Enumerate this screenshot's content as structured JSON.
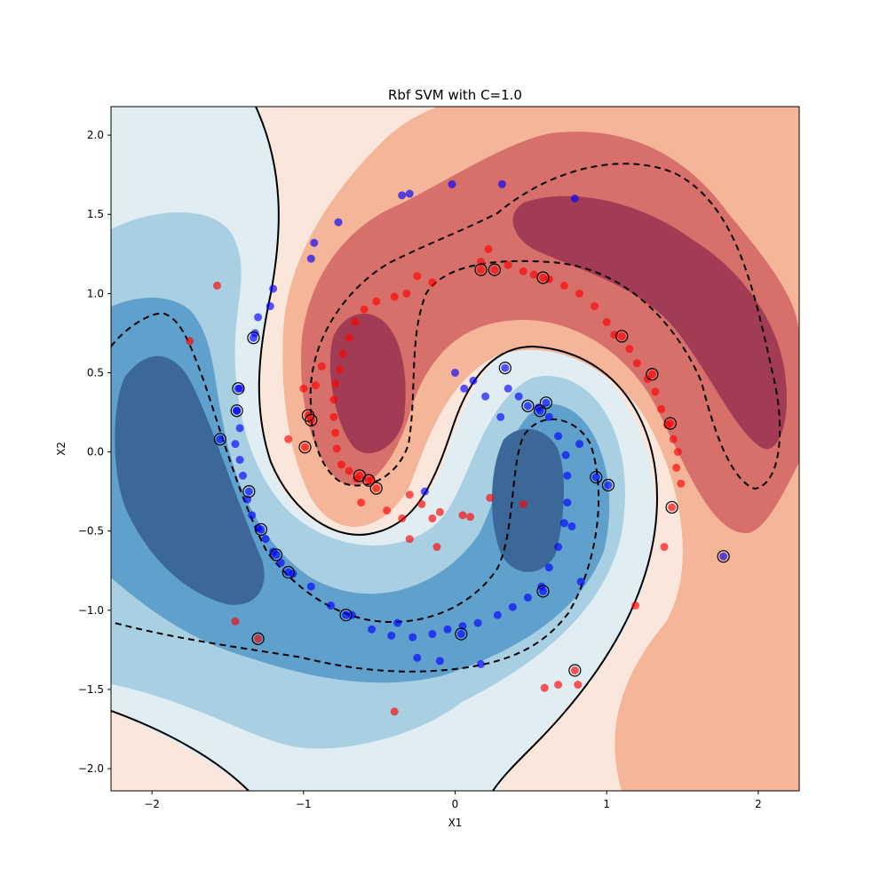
{
  "chart_data": {
    "type": "scatter",
    "title": "Rbf SVM with C=1.0",
    "xlabel": "X1",
    "ylabel": "X2",
    "xlim": [
      -2.27,
      2.27
    ],
    "ylim": [
      -2.14,
      2.18
    ],
    "xticks": [
      -2,
      -1,
      0,
      1,
      2
    ],
    "yticks": [
      -2.0,
      -1.5,
      -1.0,
      -0.5,
      0.0,
      0.5,
      1.0,
      1.5,
      2.0
    ],
    "xtick_labels": [
      "−2",
      "−1",
      "0",
      "1",
      "2"
    ],
    "ytick_labels": [
      "−2.0",
      "−1.5",
      "−1.0",
      "−0.5",
      "0.0",
      "0.5",
      "1.0",
      "1.5",
      "2.0"
    ],
    "background": "filled decision-function contours (RdBu colormap): red = positive class region, blue = negative class region",
    "decision_boundary": "solid black contour at decision value 0",
    "margins": "dashed black contours at decision values -1 and +1",
    "support_vectors_marker": "black ring around point",
    "colors": {
      "class_red": "#ff0000",
      "class_blue": "#0000ff",
      "red_levels": [
        "#fbe6dc",
        "#f4b598",
        "#d7706b",
        "#a23c54"
      ],
      "blue_levels": [
        "#e0edf3",
        "#a8cfe2",
        "#5fa0cc",
        "#3b6898"
      ]
    },
    "series": [
      {
        "color": "red",
        "points": [
          [
            0.17,
            1.2
          ],
          [
            0.22,
            1.28
          ],
          [
            0.35,
            1.18
          ],
          [
            0.45,
            1.14
          ],
          [
            0.52,
            1.12
          ],
          [
            0.62,
            1.09
          ],
          [
            0.72,
            1.05
          ],
          [
            0.82,
            1.0
          ],
          [
            0.92,
            0.92
          ],
          [
            1.0,
            0.82
          ],
          [
            1.05,
            0.74
          ],
          [
            1.15,
            0.65
          ],
          [
            1.2,
            0.56
          ],
          [
            1.27,
            0.46
          ],
          [
            1.32,
            0.38
          ],
          [
            1.36,
            0.27
          ],
          [
            1.4,
            0.17
          ],
          [
            1.44,
            0.08
          ],
          [
            1.47,
            0.0
          ],
          [
            1.46,
            -0.1
          ],
          [
            1.49,
            -0.2
          ],
          [
            1.38,
            -0.6
          ],
          [
            1.19,
            -0.97
          ],
          [
            0.81,
            -1.47
          ],
          [
            0.59,
            -1.49
          ],
          [
            -0.15,
            1.07
          ],
          [
            -0.25,
            1.11
          ],
          [
            -0.32,
            1.0
          ],
          [
            -0.4,
            0.98
          ],
          [
            -0.52,
            0.95
          ],
          [
            -0.6,
            0.9
          ],
          [
            -0.66,
            0.82
          ],
          [
            -0.7,
            0.72
          ],
          [
            -0.74,
            0.62
          ],
          [
            -0.76,
            0.52
          ],
          [
            -0.79,
            0.43
          ],
          [
            -0.8,
            0.33
          ],
          [
            -0.8,
            0.22
          ],
          [
            -0.79,
            0.12
          ],
          [
            -0.78,
            0.02
          ],
          [
            -0.75,
            -0.08
          ],
          [
            -0.7,
            -0.12
          ],
          [
            -0.65,
            -0.17
          ],
          [
            -0.62,
            -0.32
          ],
          [
            -0.55,
            -0.18
          ],
          [
            -0.45,
            -0.37
          ],
          [
            -0.35,
            -0.42
          ],
          [
            -0.3,
            -0.27
          ],
          [
            -0.22,
            -0.33
          ],
          [
            -0.15,
            -0.42
          ],
          [
            -0.12,
            -0.6
          ],
          [
            -0.1,
            -0.38
          ],
          [
            0.05,
            -0.4
          ],
          [
            0.1,
            -0.41
          ],
          [
            0.23,
            -0.29
          ],
          [
            0.45,
            -0.33
          ],
          [
            -0.3,
            -0.55
          ],
          [
            -0.88,
            0.54
          ],
          [
            -0.92,
            0.42
          ],
          [
            -1.1,
            0.08
          ],
          [
            -1.75,
            0.7
          ],
          [
            -1.57,
            1.05
          ],
          [
            -1.45,
            -1.07
          ],
          [
            -0.4,
            -1.64
          ],
          [
            0.68,
            -1.47
          ],
          [
            -1.0,
            0.4
          ],
          [
            -0.97,
            0.23
          ],
          [
            -0.95,
            0.2
          ],
          [
            -0.99,
            0.03
          ],
          [
            -0.63,
            -0.15
          ],
          [
            -0.57,
            -0.18
          ],
          [
            -0.52,
            -0.23
          ],
          [
            0.17,
            1.15
          ],
          [
            0.26,
            1.15
          ],
          [
            0.58,
            1.1
          ],
          [
            1.1,
            0.73
          ],
          [
            1.3,
            0.49
          ],
          [
            1.42,
            0.18
          ],
          [
            1.43,
            -0.35
          ],
          [
            0.79,
            -1.38
          ],
          [
            -1.3,
            -1.18
          ]
        ]
      },
      {
        "color": "blue",
        "points": [
          [
            -1.42,
            0.4
          ],
          [
            -1.44,
            0.26
          ],
          [
            -1.42,
            0.15
          ],
          [
            -1.45,
            0.05
          ],
          [
            -1.42,
            -0.05
          ],
          [
            -1.4,
            -0.15
          ],
          [
            -1.37,
            -0.3
          ],
          [
            -1.34,
            -0.4
          ],
          [
            -1.3,
            -0.48
          ],
          [
            -1.25,
            -0.55
          ],
          [
            -1.2,
            -0.63
          ],
          [
            -1.15,
            -0.7
          ],
          [
            -1.07,
            -0.77
          ],
          [
            -0.95,
            -0.85
          ],
          [
            -0.82,
            -0.97
          ],
          [
            -0.68,
            -1.03
          ],
          [
            -0.55,
            -1.12
          ],
          [
            -0.42,
            -1.16
          ],
          [
            -0.28,
            -1.17
          ],
          [
            -0.15,
            -1.15
          ],
          [
            -0.05,
            -1.12
          ],
          [
            0.05,
            -1.1
          ],
          [
            0.15,
            -1.08
          ],
          [
            0.28,
            -1.03
          ],
          [
            0.38,
            -0.98
          ],
          [
            0.48,
            -0.92
          ],
          [
            0.57,
            -0.85
          ],
          [
            0.62,
            -0.73
          ],
          [
            0.68,
            -0.6
          ],
          [
            0.72,
            -0.45
          ],
          [
            0.74,
            -0.32
          ],
          [
            0.74,
            -0.15
          ],
          [
            0.73,
            -0.02
          ],
          [
            0.68,
            0.1
          ],
          [
            0.62,
            0.22
          ],
          [
            0.55,
            0.28
          ],
          [
            0.42,
            0.35
          ],
          [
            0.35,
            0.4
          ],
          [
            0.3,
            0.22
          ],
          [
            0.2,
            0.35
          ],
          [
            0.12,
            0.45
          ],
          [
            0.06,
            0.4
          ],
          [
            0.0,
            0.5
          ],
          [
            0.77,
            -0.47
          ],
          [
            0.83,
            -0.82
          ],
          [
            0.82,
            0.05
          ],
          [
            -0.2,
            -0.25
          ],
          [
            -0.38,
            -1.08
          ],
          [
            -0.1,
            -1.32
          ],
          [
            -0.25,
            -1.3
          ],
          [
            0.17,
            -1.34
          ],
          [
            -1.32,
            0.75
          ],
          [
            -1.3,
            0.85
          ],
          [
            -1.22,
            0.92
          ],
          [
            -1.2,
            1.03
          ],
          [
            -0.95,
            1.22
          ],
          [
            -0.93,
            1.32
          ],
          [
            -0.77,
            1.45
          ],
          [
            -0.35,
            1.62
          ],
          [
            -0.3,
            1.63
          ],
          [
            -0.02,
            1.69
          ],
          [
            0.31,
            1.69
          ],
          [
            0.79,
            1.6
          ],
          [
            1.77,
            -0.66
          ],
          [
            -1.55,
            0.08
          ],
          [
            -1.33,
            0.72
          ],
          [
            -1.43,
            0.4
          ],
          [
            -1.44,
            0.26
          ],
          [
            -1.36,
            -0.25
          ],
          [
            -1.28,
            -0.49
          ],
          [
            -1.18,
            -0.65
          ],
          [
            -1.1,
            -0.76
          ],
          [
            -0.72,
            -1.03
          ],
          [
            0.04,
            -1.15
          ],
          [
            0.33,
            0.53
          ],
          [
            0.48,
            0.29
          ],
          [
            0.56,
            0.26
          ],
          [
            0.6,
            0.31
          ],
          [
            0.93,
            -0.16
          ],
          [
            1.01,
            -0.21
          ],
          [
            0.58,
            -0.88
          ]
        ]
      }
    ],
    "support_vector_count": 33
  }
}
